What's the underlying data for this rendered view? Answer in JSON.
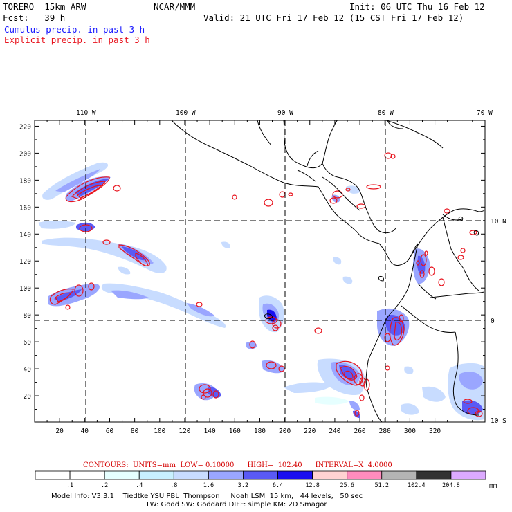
{
  "header": {
    "model": "TORERO  15km ARW",
    "org": "NCAR/MMM",
    "init": "Init: 06 UTC Thu 16 Feb 12",
    "fcst": "Fcst:   39 h",
    "valid": "Valid: 21 UTC Fri 17 Feb 12 (15 CST Fri 17 Feb 12)",
    "field1": "Cumulus precip. in past 3 h",
    "field2": "Explicit precip. in past 3 h"
  },
  "axes": {
    "lon_labels": [
      "110 W",
      "100 W",
      "90 W",
      "80 W",
      "70 W"
    ],
    "lat_labels": [
      "10 N",
      "0",
      "10 S"
    ],
    "x_ticks": [
      "20",
      "40",
      "60",
      "80",
      "100",
      "120",
      "140",
      "160",
      "180",
      "200",
      "220",
      "240",
      "260",
      "280",
      "300",
      "320"
    ],
    "y_ticks": [
      "220",
      "200",
      "180",
      "160",
      "140",
      "120",
      "100",
      "80",
      "60",
      "40",
      "20"
    ]
  },
  "contour_info": {
    "text": "CONTOURS:  UNITS=mm  LOW= 0.10000      HIGH=  102.40      INTERVAL=X  4.0000"
  },
  "colorbar": {
    "units": "mm",
    "levels": [
      ".1",
      ".2",
      ".4",
      ".8",
      "1.6",
      "3.2",
      "6.4",
      "12.8",
      "25.6",
      "51.2",
      "102.4",
      "204.8"
    ],
    "colors": [
      "#ffffff",
      "#ffffff",
      "#e6ffff",
      "#c8f0ff",
      "#c8dcff",
      "#9aa6ff",
      "#5a5af5",
      "#1a10f0",
      "#ffd2d2",
      "#ff8cbe",
      "#b4b4b4",
      "#323232",
      "#dcaaff"
    ]
  },
  "model_info": {
    "line1": "Model Info: V3.3.1    Tiedtke YSU PBL  Thompson     Noah LSM  15 km,   44 levels,   50 sec",
    "line2": "LW: Godd SW: Goddard DIFF: simple KM: 2D Smagor"
  }
}
